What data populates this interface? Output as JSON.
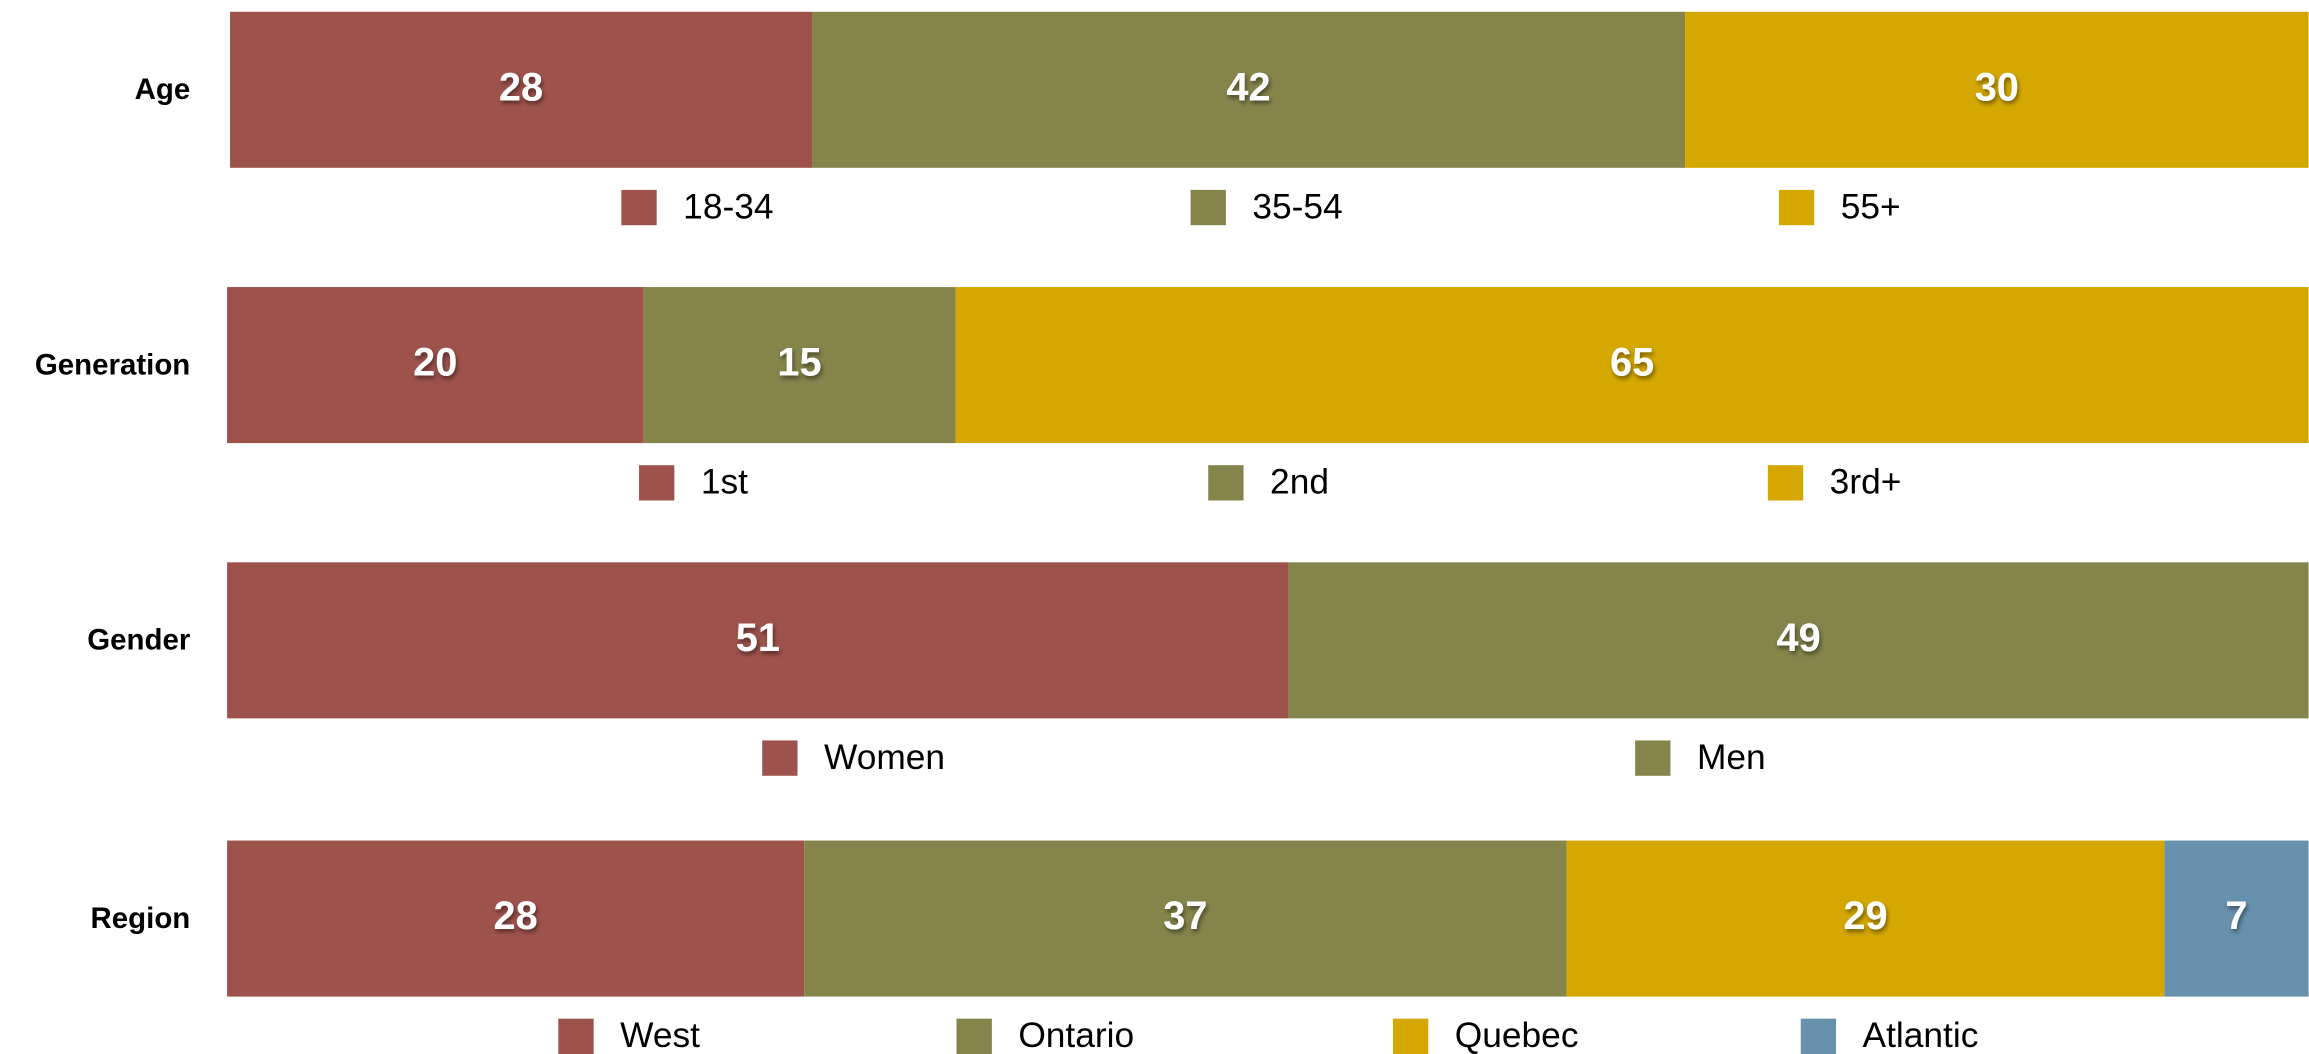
{
  "chart_data": [
    {
      "type": "stacked-bar",
      "label": "Age",
      "xlim": [
        0,
        100
      ],
      "series": [
        {
          "name": "18-34",
          "color": "#9e524c",
          "values": [
            28
          ]
        },
        {
          "name": "35-54",
          "color": "#85844b",
          "values": [
            42
          ]
        },
        {
          "name": "55+",
          "color": "#d4a800",
          "values": [
            30
          ]
        }
      ]
    },
    {
      "type": "stacked-bar",
      "label": "Generation",
      "xlim": [
        0,
        100
      ],
      "series": [
        {
          "name": "1st",
          "color": "#9e524c",
          "values": [
            20
          ]
        },
        {
          "name": "2nd",
          "color": "#85844b",
          "values": [
            15
          ]
        },
        {
          "name": "3rd+",
          "color": "#d4a800",
          "values": [
            65
          ]
        }
      ]
    },
    {
      "type": "stacked-bar",
      "label": "Gender",
      "xlim": [
        0,
        100
      ],
      "series": [
        {
          "name": "Women",
          "color": "#9e524c",
          "values": [
            51
          ]
        },
        {
          "name": "Men",
          "color": "#85844b",
          "values": [
            49
          ]
        }
      ]
    },
    {
      "type": "stacked-bar",
      "label": "Region",
      "xlim": [
        0,
        101
      ],
      "series": [
        {
          "name": "West",
          "color": "#9e524c",
          "values": [
            28
          ]
        },
        {
          "name": "Ontario",
          "color": "#85844b",
          "values": [
            37
          ]
        },
        {
          "name": "Quebec",
          "color": "#d4a800",
          "values": [
            29
          ]
        },
        {
          "name": "Atlantic",
          "color": "#6891ad",
          "values": [
            7
          ]
        }
      ]
    }
  ]
}
